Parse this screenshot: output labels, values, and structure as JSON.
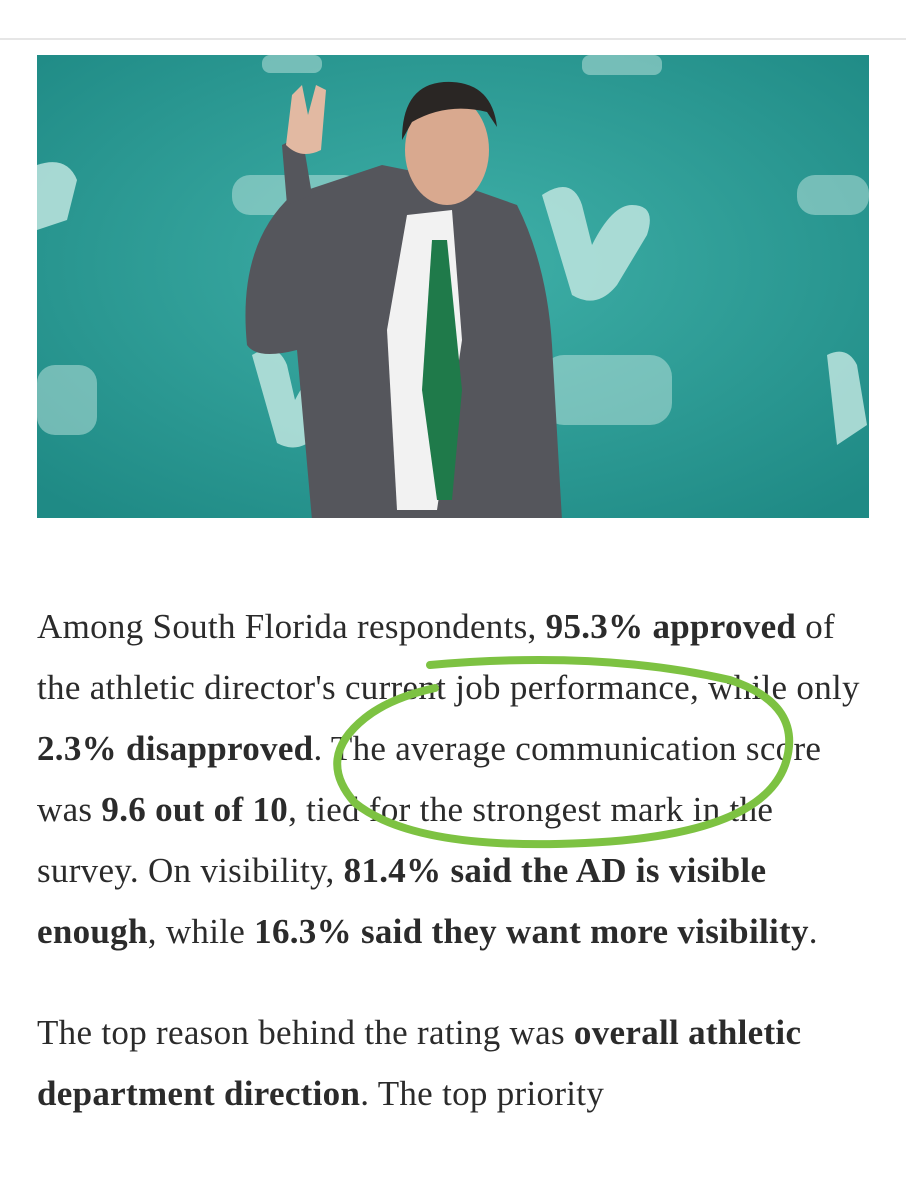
{
  "article": {
    "paragraphs": [
      {
        "runs": [
          {
            "text": "Among South Florida respondents, ",
            "bold": false
          },
          {
            "text": "95.3% approved",
            "bold": true
          },
          {
            "text": " of the athletic director's current job performance, while only ",
            "bold": false
          },
          {
            "text": "2.3% disapproved",
            "bold": true
          },
          {
            "text": ". The average communication score was ",
            "bold": false
          },
          {
            "text": "9.6 out of 10",
            "bold": true
          },
          {
            "text": ", tied for the strongest mark in the survey. On visibility, ",
            "bold": false
          },
          {
            "text": "81.4% said the AD is visible enough",
            "bold": true
          },
          {
            "text": ", while ",
            "bold": false
          },
          {
            "text": "16.3% said they want more visibility",
            "bold": true
          },
          {
            "text": ".",
            "bold": false
          }
        ]
      },
      {
        "runs": [
          {
            "text": "The top reason behind the rating was ",
            "bold": false
          },
          {
            "text": "overall athletic department direction",
            "bold": true
          },
          {
            "text": ". The top priority",
            "bold": false
          }
        ]
      }
    ]
  }
}
